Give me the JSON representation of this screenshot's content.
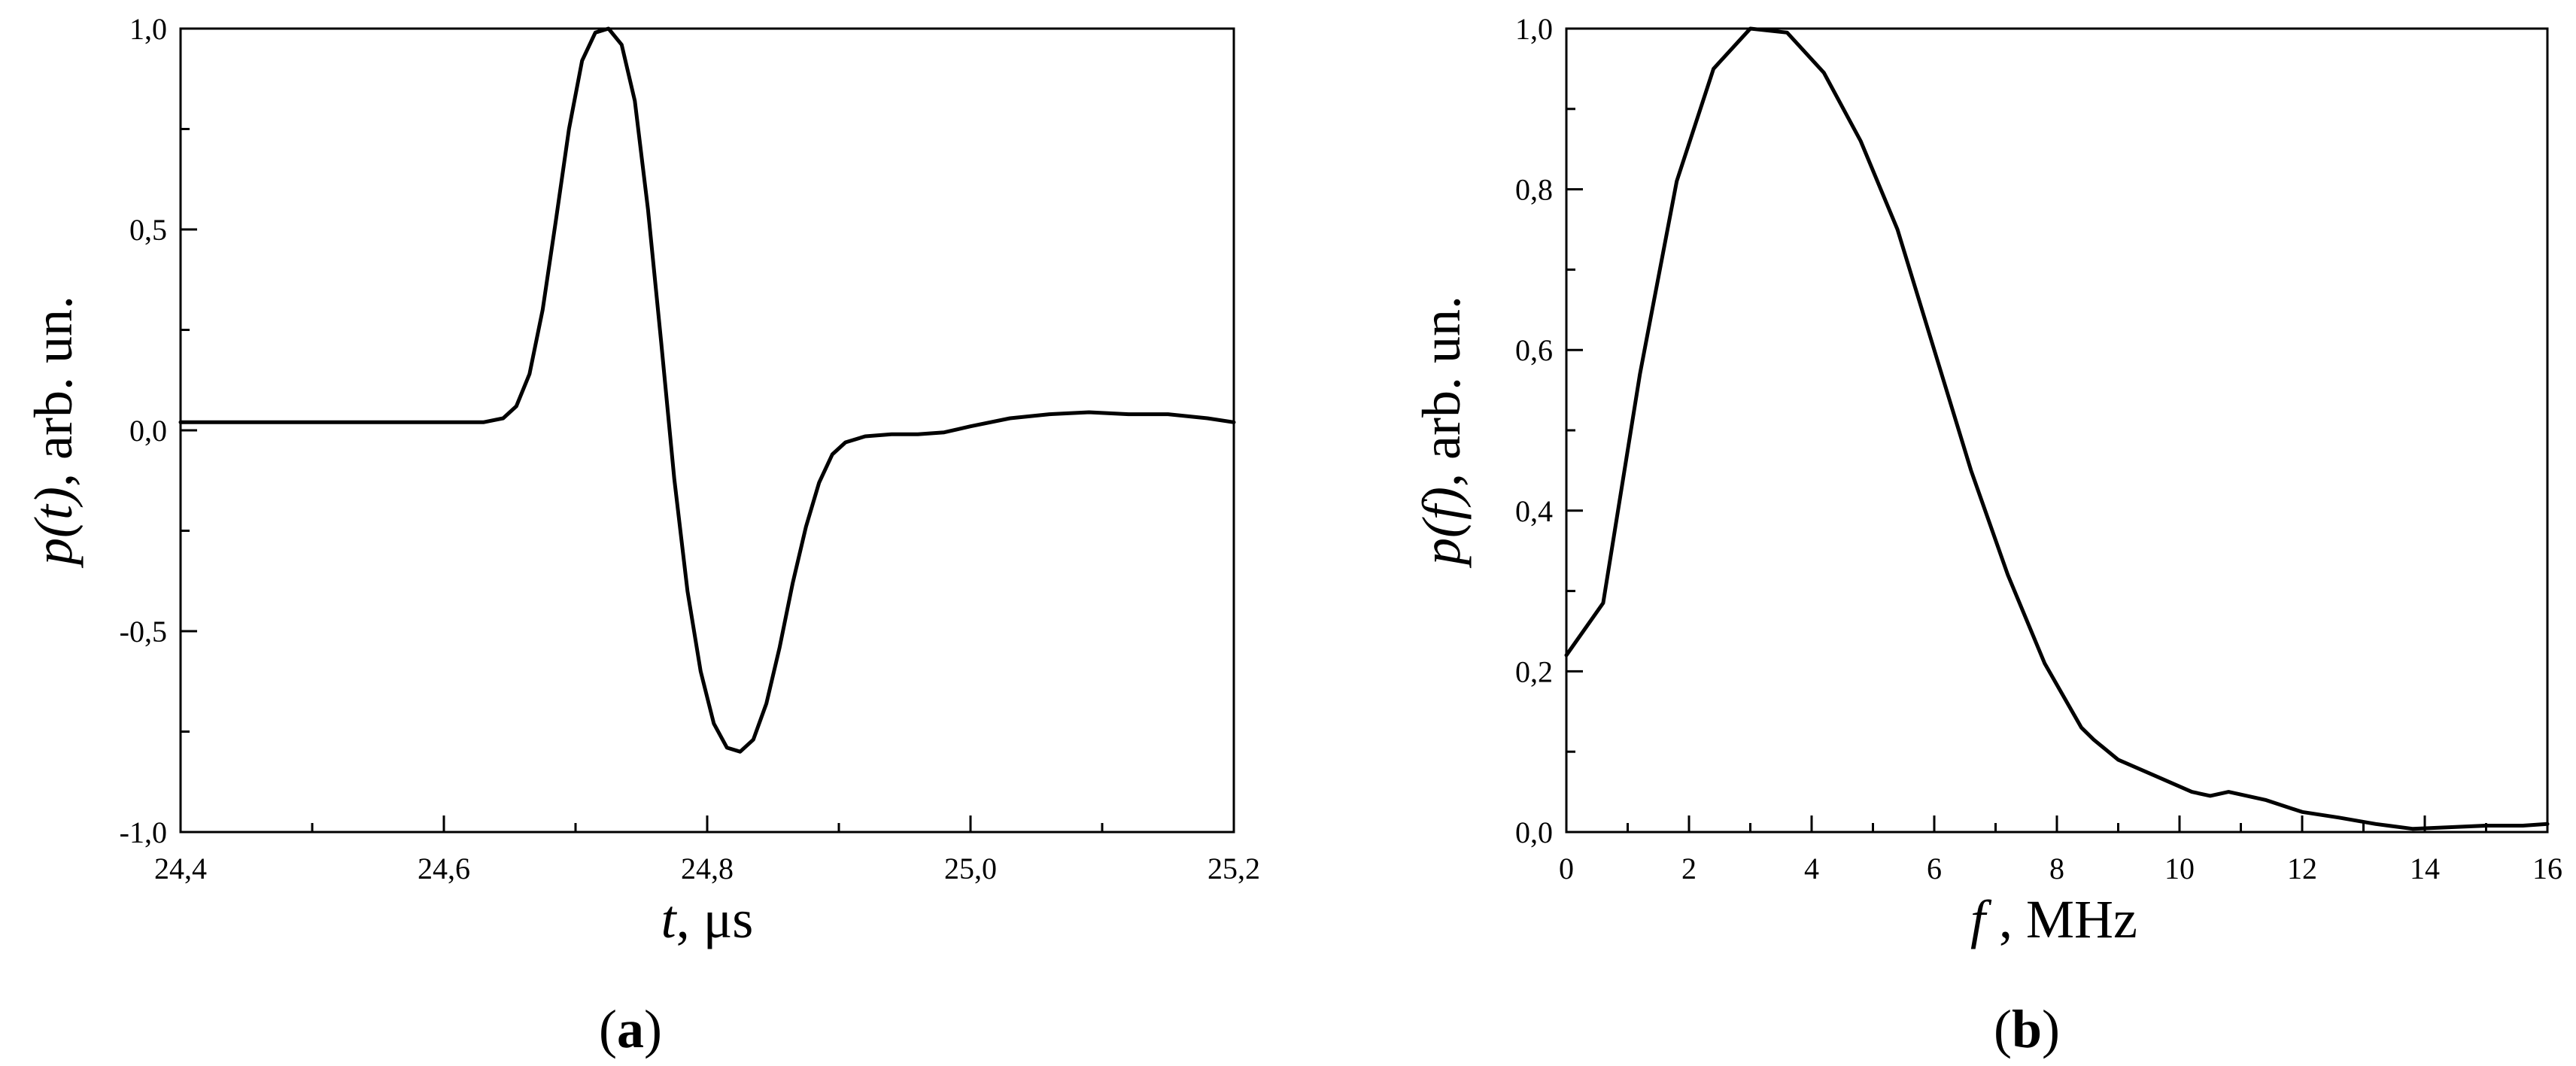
{
  "chart_data": [
    {
      "type": "line",
      "panel_label_open": "(",
      "panel_label": "a",
      "panel_label_close": ")",
      "xlabel_var": "t",
      "xlabel_unit": ", μs",
      "ylabel_var": "p(t)",
      "ylabel_unit": ", arb. un.",
      "xlim": [
        24.4,
        25.2
      ],
      "ylim": [
        -1.0,
        1.0
      ],
      "x_ticks": [
        24.4,
        24.6,
        24.8,
        25.0,
        25.2
      ],
      "x_tick_labels": [
        "24,4",
        "24,6",
        "24,8",
        "25,0",
        "25,2"
      ],
      "y_ticks": [
        -1.0,
        -0.5,
        0.0,
        0.5,
        1.0
      ],
      "y_tick_labels": [
        "-1,0",
        "-0,5",
        "0,0",
        "0,5",
        "1,0"
      ],
      "grid": false,
      "series": [
        {
          "x": [
            24.4,
            24.45,
            24.5,
            24.55,
            24.6,
            24.63,
            24.645,
            24.655,
            24.665,
            24.675,
            24.685,
            24.695,
            24.705,
            24.715,
            24.725,
            24.735,
            24.745,
            24.755,
            24.765,
            24.775,
            24.785,
            24.795,
            24.805,
            24.815,
            24.825,
            24.835,
            24.845,
            24.855,
            24.865,
            24.875,
            24.885,
            24.895,
            24.905,
            24.92,
            24.94,
            24.96,
            24.98,
            25.0,
            25.03,
            25.06,
            25.09,
            25.12,
            25.15,
            25.18,
            25.2
          ],
          "y": [
            0.02,
            0.02,
            0.02,
            0.02,
            0.02,
            0.02,
            0.03,
            0.06,
            0.14,
            0.3,
            0.52,
            0.75,
            0.92,
            0.99,
            1.0,
            0.96,
            0.82,
            0.55,
            0.22,
            -0.12,
            -0.4,
            -0.6,
            -0.73,
            -0.79,
            -0.8,
            -0.77,
            -0.68,
            -0.54,
            -0.38,
            -0.24,
            -0.13,
            -0.06,
            -0.03,
            -0.015,
            -0.01,
            -0.01,
            -0.005,
            0.01,
            0.03,
            0.04,
            0.045,
            0.04,
            0.04,
            0.03,
            0.02
          ]
        }
      ]
    },
    {
      "type": "line",
      "panel_label_open": "(",
      "panel_label": "b",
      "panel_label_close": ")",
      "xlabel_var": "f",
      "xlabel_unit": " , MHz",
      "ylabel_var": "p(f)",
      "ylabel_unit": ", arb. un.",
      "xlim": [
        0,
        16
      ],
      "ylim": [
        0.0,
        1.0
      ],
      "x_ticks": [
        0,
        2,
        4,
        6,
        8,
        10,
        12,
        14,
        16
      ],
      "x_tick_labels": [
        "0",
        "2",
        "4",
        "6",
        "8",
        "10",
        "12",
        "14",
        "16"
      ],
      "y_ticks": [
        0.0,
        0.2,
        0.4,
        0.6,
        0.8,
        1.0
      ],
      "y_tick_labels": [
        "0,0",
        "0,2",
        "0,4",
        "0,6",
        "0,8",
        "1,0"
      ],
      "grid": false,
      "series": [
        {
          "x": [
            0,
            0.6,
            1.2,
            1.8,
            2.4,
            3.0,
            3.6,
            4.2,
            4.8,
            5.4,
            6.0,
            6.6,
            7.2,
            7.8,
            8.4,
            8.6,
            9.0,
            9.6,
            10.2,
            10.5,
            10.8,
            11.4,
            12.0,
            12.6,
            13.2,
            13.8,
            14.4,
            15.0,
            15.6,
            16.0
          ],
          "y": [
            0.22,
            0.285,
            0.57,
            0.81,
            0.95,
            1.0,
            0.995,
            0.945,
            0.86,
            0.75,
            0.6,
            0.45,
            0.32,
            0.21,
            0.13,
            0.115,
            0.09,
            0.07,
            0.05,
            0.045,
            0.05,
            0.04,
            0.025,
            0.018,
            0.01,
            0.004,
            0.006,
            0.008,
            0.008,
            0.01
          ]
        }
      ]
    }
  ]
}
